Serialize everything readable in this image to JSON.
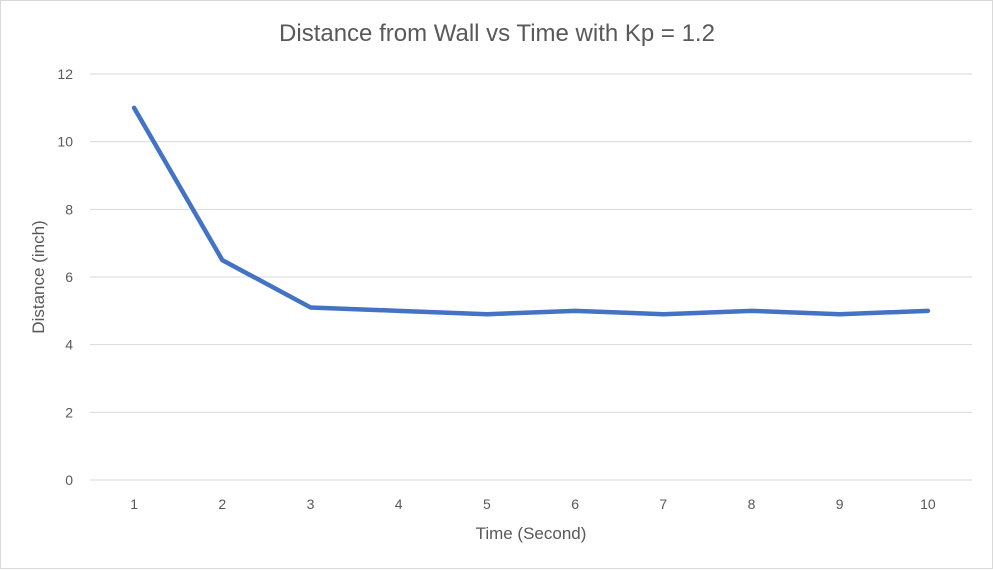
{
  "chart_data": {
    "type": "line",
    "title": "Distance from Wall vs Time with Kp = 1.2",
    "xlabel": "Time (Second)",
    "ylabel": "Distance (inch)",
    "categories": [
      "1",
      "2",
      "3",
      "4",
      "5",
      "6",
      "7",
      "8",
      "9",
      "10"
    ],
    "series": [
      {
        "values": [
          11,
          6.5,
          5.1,
          5.0,
          4.9,
          5.0,
          4.9,
          5.0,
          4.9,
          5.0
        ]
      }
    ],
    "ylim": [
      0,
      12
    ],
    "yticks": [
      "0",
      "2",
      "4",
      "6",
      "8",
      "10",
      "12"
    ],
    "grid": "horizontal",
    "legend": "none",
    "colors": {
      "line": "#4472c4",
      "grid": "#d9d9d9",
      "text": "#595959"
    }
  }
}
